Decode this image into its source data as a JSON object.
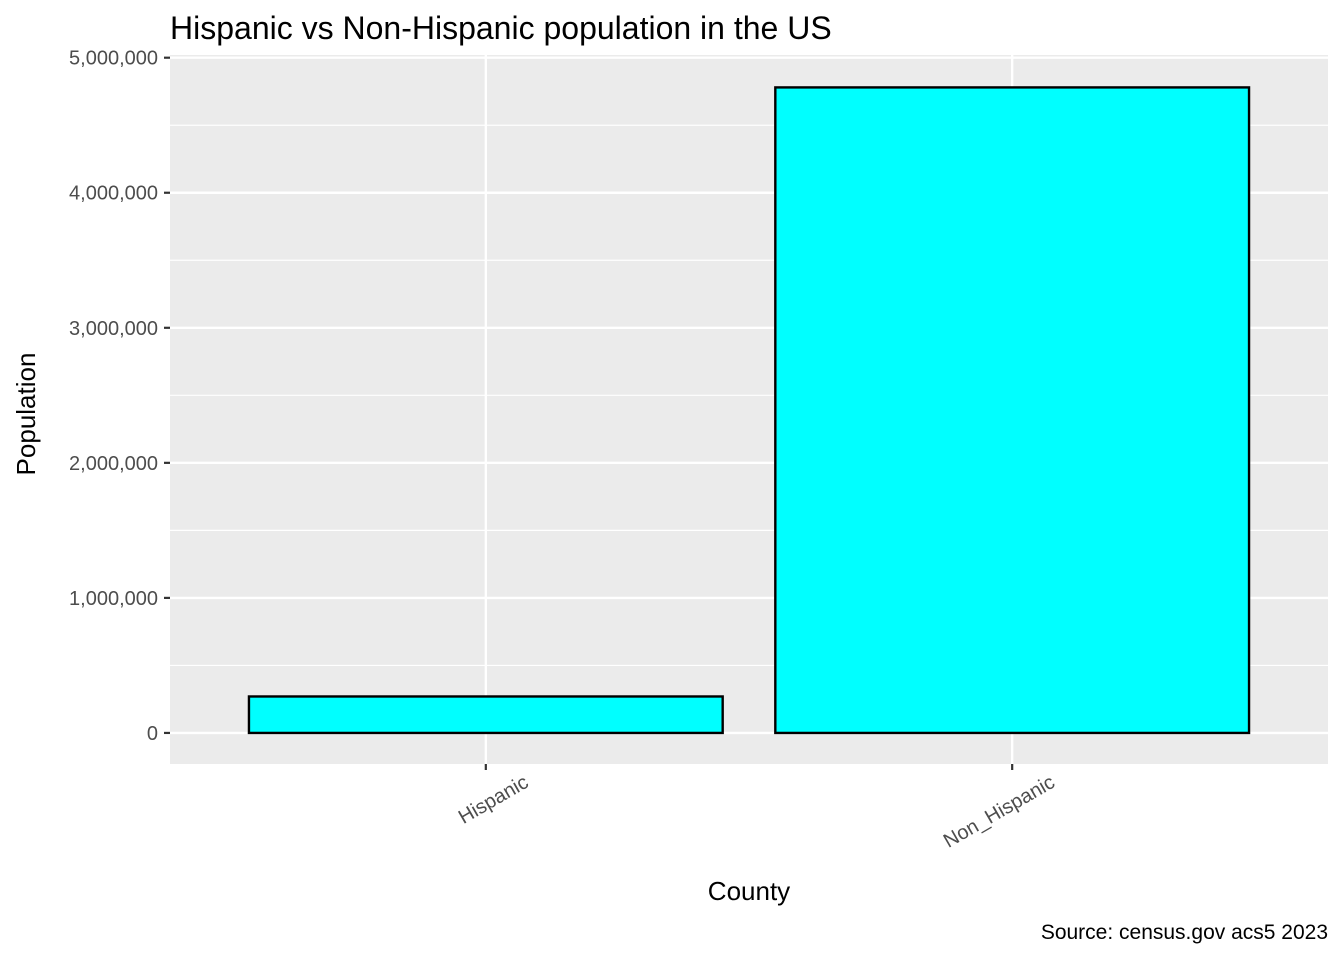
{
  "chart_data": {
    "type": "bar",
    "title": "Hispanic vs Non-Hispanic population in the US",
    "xlabel": "County",
    "ylabel": "Population",
    "caption": "Source: census.gov acs5 2023",
    "categories": [
      "Hispanic",
      "Non_Hispanic"
    ],
    "values": [
      270000,
      4780000
    ],
    "ylim": [
      -230000,
      5020000
    ],
    "y_ticks": [
      0,
      1000000,
      2000000,
      3000000,
      4000000,
      5000000
    ],
    "y_tick_labels": [
      "0",
      "1,000,000",
      "2,000,000",
      "3,000,000",
      "4,000,000",
      "5,000,000"
    ],
    "grid": true,
    "legend": "none",
    "colors": {
      "bar_fill": "#00ffff",
      "bar_stroke": "#000000",
      "panel_background": "#ebebeb",
      "gridline": "#ffffff"
    }
  }
}
